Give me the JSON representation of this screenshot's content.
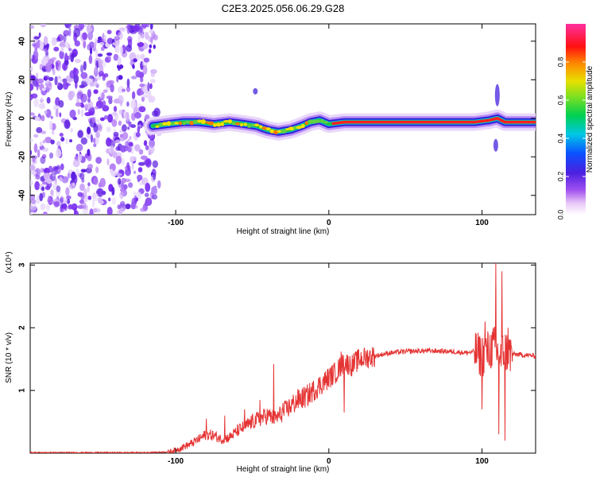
{
  "title": "C2E3.2025.056.06.29.G28",
  "chart_data": [
    {
      "type": "heatmap",
      "xlabel": "Height of straight line (km)",
      "ylabel": "Frequency (Hz)",
      "xlim": [
        -195,
        135
      ],
      "ylim": [
        -50,
        49
      ],
      "xticks": [
        -100,
        0,
        100
      ],
      "yticks": [
        -40,
        -20,
        0,
        20,
        40
      ],
      "ridge": {
        "x": [
          -115,
          -105,
          -95,
          -85,
          -75,
          -65,
          -55,
          -47,
          -40,
          -33,
          -25,
          -18,
          -12,
          -6,
          0,
          10,
          20,
          40,
          60,
          80,
          95,
          105,
          110,
          115,
          135
        ],
        "frequency": [
          -4,
          -3,
          -2,
          -2,
          -3,
          -2,
          -3,
          -4,
          -6,
          -7,
          -6,
          -4,
          -2,
          -1,
          -3,
          -2,
          -2,
          -2,
          -2,
          -2,
          -2,
          -1,
          0,
          -2,
          -2
        ]
      },
      "colorbar": {
        "label": "Normalized spectral amplitude",
        "range": [
          0,
          1
        ],
        "ticks": [
          0.0,
          0.2,
          0.4,
          0.6,
          0.8
        ]
      }
    },
    {
      "type": "line",
      "xlabel": "Height of straight line (km)",
      "ylabel": "SNR (10 * v/v)",
      "multiplier": "(x10⁴)",
      "xlim": [
        -195,
        135
      ],
      "ylim": [
        0,
        3.03
      ],
      "xticks": [
        -100,
        0,
        100
      ],
      "yticks": [
        1,
        2,
        3
      ],
      "color": "#e53333",
      "x": [
        -195,
        -120,
        -105,
        -100,
        -95,
        -90,
        -85,
        -80,
        -75,
        -70,
        -65,
        -60,
        -55,
        -50,
        -45,
        -40,
        -35,
        -30,
        -25,
        -20,
        -15,
        -10,
        -5,
        0,
        5,
        10,
        15,
        20,
        30,
        40,
        50,
        60,
        70,
        80,
        90,
        95,
        100,
        105,
        108,
        110,
        112,
        114,
        116,
        118,
        120,
        125,
        130,
        135
      ],
      "y": [
        0.01,
        0.01,
        0.02,
        0.05,
        0.1,
        0.15,
        0.22,
        0.3,
        0.28,
        0.22,
        0.25,
        0.35,
        0.42,
        0.5,
        0.55,
        0.6,
        0.55,
        0.65,
        0.75,
        0.85,
        0.9,
        1.0,
        1.1,
        1.2,
        1.3,
        1.45,
        1.4,
        1.5,
        1.55,
        1.6,
        1.62,
        1.63,
        1.63,
        1.62,
        1.6,
        1.62,
        1.55,
        1.65,
        1.7,
        1.6,
        1.5,
        1.65,
        1.62,
        1.6,
        1.58,
        1.57,
        1.56,
        1.55
      ],
      "spikes": [
        {
          "x": -80,
          "y": 0.55
        },
        {
          "x": -68,
          "y": 0.6
        },
        {
          "x": -55,
          "y": 0.7
        },
        {
          "x": -45,
          "y": 0.85
        },
        {
          "x": -36,
          "y": 1.42
        },
        {
          "x": -30,
          "y": 0.8
        },
        {
          "x": 8,
          "y": 1.62
        },
        {
          "x": 10,
          "y": 0.65
        },
        {
          "x": 100,
          "y": 0.7
        },
        {
          "x": 102,
          "y": 2.1
        },
        {
          "x": 109,
          "y": 3.03
        },
        {
          "x": 113,
          "y": 2.9
        },
        {
          "x": 115,
          "y": 0.2
        },
        {
          "x": 117,
          "y": 2.0
        },
        {
          "x": 111,
          "y": 0.3
        }
      ]
    }
  ]
}
